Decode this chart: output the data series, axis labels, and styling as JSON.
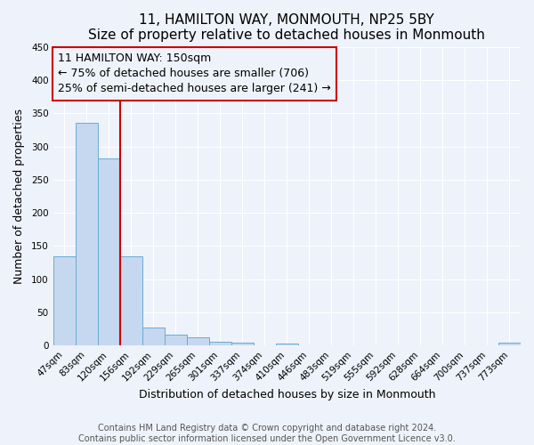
{
  "title": "11, HAMILTON WAY, MONMOUTH, NP25 5BY",
  "subtitle": "Size of property relative to detached houses in Monmouth",
  "xlabel": "Distribution of detached houses by size in Monmouth",
  "ylabel": "Number of detached properties",
  "bin_labels": [
    "47sqm",
    "83sqm",
    "120sqm",
    "156sqm",
    "192sqm",
    "229sqm",
    "265sqm",
    "301sqm",
    "337sqm",
    "374sqm",
    "410sqm",
    "446sqm",
    "483sqm",
    "519sqm",
    "555sqm",
    "592sqm",
    "628sqm",
    "664sqm",
    "700sqm",
    "737sqm",
    "773sqm"
  ],
  "bar_values": [
    135,
    336,
    282,
    134,
    27,
    17,
    13,
    6,
    5,
    0,
    3,
    0,
    0,
    0,
    0,
    0,
    0,
    0,
    0,
    0,
    5
  ],
  "bar_color": "#c5d8f0",
  "bar_edge_color": "#6aabd2",
  "vline_color": "#cc0000",
  "annotation_text": "11 HAMILTON WAY: 150sqm\n← 75% of detached houses are smaller (706)\n25% of semi-detached houses are larger (241) →",
  "annotation_box_color": "#cc0000",
  "ylim": [
    0,
    450
  ],
  "yticks": [
    0,
    50,
    100,
    150,
    200,
    250,
    300,
    350,
    400,
    450
  ],
  "footer_line1": "Contains HM Land Registry data © Crown copyright and database right 2024.",
  "footer_line2": "Contains public sector information licensed under the Open Government Licence v3.0.",
  "background_color": "#eef2fa",
  "grid_color": "#ffffff",
  "title_fontsize": 11,
  "axis_label_fontsize": 9,
  "tick_fontsize": 7.5,
  "annotation_fontsize": 9,
  "footer_fontsize": 7
}
